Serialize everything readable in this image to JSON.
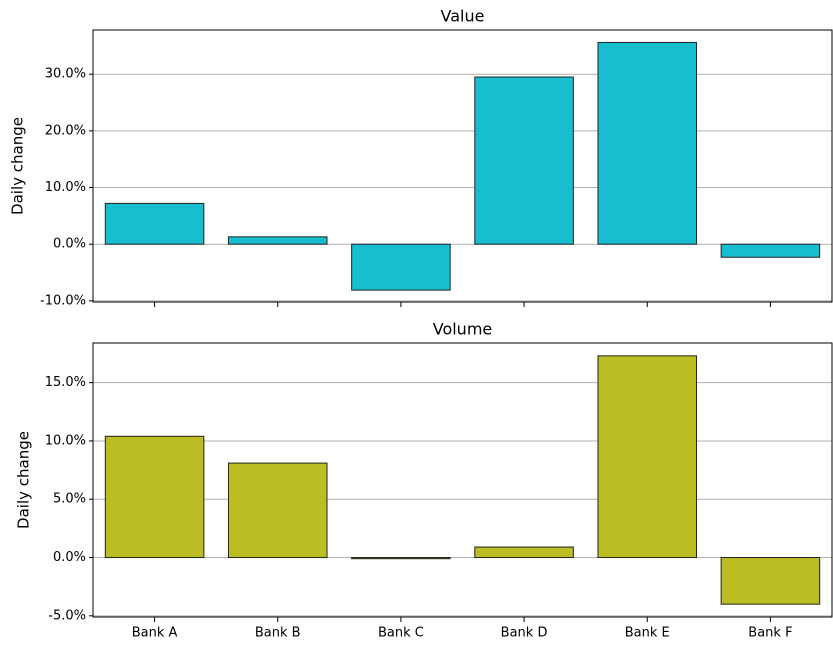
{
  "chart_data": [
    {
      "type": "bar",
      "title": "Value",
      "ylabel": "Daily change",
      "categories": [
        null,
        null,
        null,
        null,
        null,
        null
      ],
      "values": [
        7.2,
        1.3,
        -8.1,
        29.5,
        35.6,
        -2.3
      ],
      "color": "#17becf",
      "ylim": [
        -10.2,
        37.8
      ],
      "yticks": [
        {
          "value": -10,
          "label": "-10.0%"
        },
        {
          "value": 0,
          "label": "0.0%"
        },
        {
          "value": 10,
          "label": "10.0%"
        },
        {
          "value": 20,
          "label": "20.0%"
        },
        {
          "value": 30,
          "label": "30.0%"
        }
      ],
      "grid": true
    },
    {
      "type": "bar",
      "title": "Volume",
      "ylabel": "Daily change",
      "categories": [
        "Bank A",
        "Bank B",
        "Bank C",
        "Bank D",
        "Bank E",
        "Bank F"
      ],
      "values": [
        10.4,
        8.1,
        -0.1,
        0.9,
        17.3,
        -4.0
      ],
      "color": "#bcbd22",
      "ylim": [
        -5.1,
        18.4
      ],
      "yticks": [
        {
          "value": -5,
          "label": "-5.0%"
        },
        {
          "value": 0,
          "label": "0.0%"
        },
        {
          "value": 5,
          "label": "5.0%"
        },
        {
          "value": 10,
          "label": "10.0%"
        },
        {
          "value": 15,
          "label": "15.0%"
        }
      ],
      "grid": true
    }
  ]
}
